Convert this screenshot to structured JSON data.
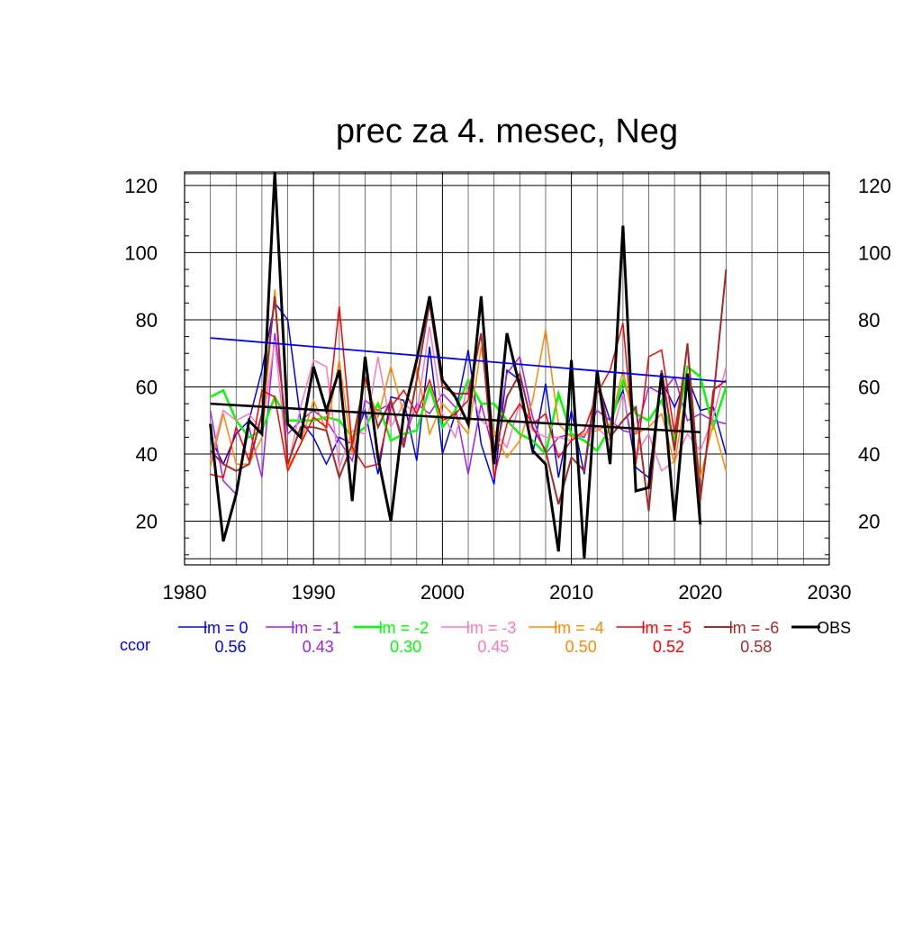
{
  "chart_data": {
    "type": "line",
    "title": "prec za 4. mesec, Neg",
    "xlabel": "",
    "ylabel": "",
    "xlim": [
      1980,
      2030
    ],
    "ylim": [
      7,
      124
    ],
    "x_ticks": [
      1980,
      1990,
      2000,
      2010,
      2020,
      2030
    ],
    "y_ticks": [
      20,
      40,
      60,
      80,
      100,
      120
    ],
    "grid": true,
    "legend_position": "bottom",
    "ccor_label": "ccor",
    "x": [
      1982,
      1983,
      1984,
      1985,
      1986,
      1987,
      1988,
      1989,
      1990,
      1991,
      1992,
      1993,
      1994,
      1995,
      1996,
      1997,
      1998,
      1999,
      2000,
      2001,
      2002,
      2003,
      2004,
      2005,
      2006,
      2007,
      2008,
      2009,
      2010,
      2011,
      2012,
      2013,
      2014,
      2015,
      2016,
      2017,
      2018,
      2019,
      2020,
      2021,
      2022
    ],
    "series": [
      {
        "name": "lm = 0",
        "color": "#0000ff",
        "ccor": "0.56",
        "width": 1.5,
        "values": [
          45,
          37,
          46,
          50,
          65,
          85,
          80,
          50,
          45,
          37,
          45,
          43,
          53,
          34,
          57,
          56,
          38,
          72,
          40,
          52,
          71,
          43,
          31,
          65,
          62,
          40,
          61,
          33,
          53,
          34,
          62,
          50,
          59,
          36,
          33,
          62,
          54,
          63,
          53,
          54,
          40
        ],
        "trend": [
          74.6,
          61.5
        ]
      },
      {
        "name": "lm = -1",
        "color": "#a020f0",
        "ccor": "0.43",
        "width": 1.5,
        "values": [
          53,
          32,
          28,
          48,
          33,
          76,
          46,
          50,
          53,
          50,
          44,
          38,
          56,
          53,
          55,
          44,
          55,
          52,
          58,
          54,
          34,
          55,
          40,
          64,
          69,
          51,
          40,
          45,
          46,
          45,
          53,
          50,
          47,
          46,
          60,
          58,
          63,
          50,
          52,
          50,
          49
        ]
      },
      {
        "name": "lm = -2",
        "color": "#00ff00",
        "ccor": "0.30",
        "width": 2.5,
        "values": [
          57,
          59,
          50,
          45,
          47,
          57,
          50,
          50,
          50,
          51,
          50,
          45,
          48,
          55,
          44,
          46,
          47,
          60,
          48,
          53,
          62,
          55,
          55,
          50,
          46,
          44,
          40,
          58,
          46,
          44,
          41,
          48,
          62,
          52,
          50,
          56,
          44,
          66,
          63,
          48,
          60
        ]
      },
      {
        "name": "lm = -3",
        "color": "#ff77bb",
        "ccor": "0.45",
        "width": 1.5,
        "values": [
          38,
          53,
          50,
          52,
          47,
          74,
          36,
          54,
          68,
          66,
          36,
          47,
          46,
          69,
          48,
          55,
          52,
          78,
          52,
          45,
          61,
          50,
          47,
          42,
          55,
          47,
          45,
          45,
          44,
          46,
          48,
          44,
          58,
          40,
          46,
          35,
          38,
          46,
          41,
          51,
          66
        ]
      },
      {
        "name": "lm = -4",
        "color": "#ff8800",
        "ccor": "0.50",
        "width": 1.5,
        "values": [
          36,
          52,
          37,
          37,
          45,
          89,
          36,
          43,
          56,
          47,
          68,
          40,
          62,
          51,
          66,
          52,
          66,
          46,
          55,
          51,
          46,
          72,
          46,
          39,
          44,
          56,
          77,
          49,
          45,
          46,
          47,
          49,
          65,
          46,
          48,
          52,
          37,
          61,
          33,
          49,
          35
        ]
      },
      {
        "name": "lm = -5",
        "color": "#ff0000",
        "ccor": "0.52",
        "width": 1.5,
        "values": [
          34,
          33,
          48,
          38,
          59,
          57,
          35,
          43,
          51,
          48,
          84,
          42,
          36,
          37,
          54,
          59,
          52,
          62,
          50,
          52,
          56,
          76,
          33,
          49,
          55,
          49,
          52,
          39,
          44,
          47,
          58,
          65,
          79,
          37,
          69,
          71,
          46,
          72,
          26,
          59,
          62
        ]
      },
      {
        "name": "lm = -6",
        "color": "#a52a2a",
        "ccor": "0.58",
        "width": 2,
        "values": [
          41,
          37,
          35,
          37,
          52,
          87,
          37,
          48,
          48,
          47,
          33,
          43,
          63,
          48,
          56,
          42,
          62,
          85,
          60,
          58,
          58,
          76,
          38,
          57,
          64,
          48,
          41,
          25,
          39,
          35,
          64,
          45,
          50,
          54,
          23,
          65,
          41,
          73,
          27,
          56,
          95
        ]
      },
      {
        "name": "OBS",
        "color": "#000000",
        "ccor": "",
        "width": 3,
        "values": [
          49,
          14,
          28,
          50,
          46,
          124,
          49,
          45,
          66,
          53,
          65,
          26,
          69,
          39,
          20,
          52,
          68,
          87,
          62,
          57,
          49,
          87,
          37,
          76,
          60,
          41,
          37,
          11,
          68,
          9,
          65,
          37,
          108,
          29,
          30,
          64,
          20,
          64,
          19,
          null,
          null
        ],
        "trend": [
          55.0,
          46.5
        ]
      }
    ]
  }
}
